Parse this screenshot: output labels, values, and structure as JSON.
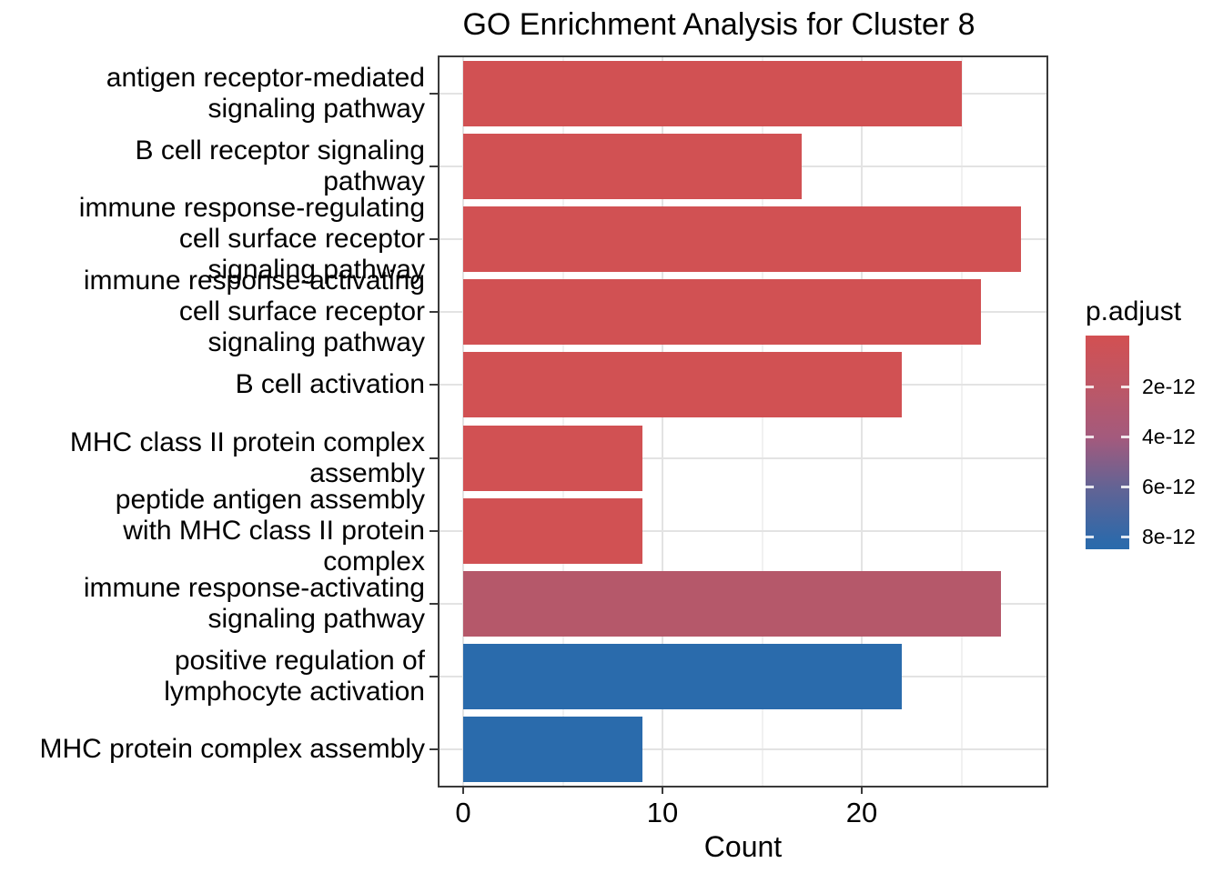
{
  "chart_data": {
    "type": "bar",
    "orientation": "horizontal",
    "title": "GO Enrichment Analysis for Cluster 8",
    "xlabel": "Count",
    "ylabel": "",
    "xlim": [
      0,
      29.3
    ],
    "grid": true,
    "x_ticks": [
      {
        "value": 0,
        "label": "0"
      },
      {
        "value": 10,
        "label": "10"
      },
      {
        "value": 20,
        "label": "20"
      }
    ],
    "x_minor_gridlines": [
      5,
      15,
      25
    ],
    "bars": [
      {
        "label": "antigen receptor-mediated signaling pathway",
        "label_lines": [
          "antigen receptor-mediated",
          "signaling pathway"
        ],
        "count": 25,
        "fill": "#D15153"
      },
      {
        "label": "B cell receptor signaling pathway",
        "label_lines": [
          "B cell receptor signaling",
          "pathway"
        ],
        "count": 17,
        "fill": "#D15153"
      },
      {
        "label": "immune response-regulating cell surface receptor signaling pathway",
        "label_lines": [
          "immune response-regulating",
          "cell surface receptor",
          "signaling pathway"
        ],
        "count": 28,
        "fill": "#D15153"
      },
      {
        "label": "immune response-activating cell surface receptor signaling pathway",
        "label_lines": [
          "immune response-activating",
          "cell surface receptor",
          "signaling pathway"
        ],
        "count": 26,
        "fill": "#D15153"
      },
      {
        "label": "B cell activation",
        "label_lines": [
          "B cell activation"
        ],
        "count": 22,
        "fill": "#D15153"
      },
      {
        "label": "MHC class II protein complex assembly",
        "label_lines": [
          "MHC class II protein complex",
          "assembly"
        ],
        "count": 9,
        "fill": "#D15153"
      },
      {
        "label": "peptide antigen assembly with MHC class II protein complex",
        "label_lines": [
          "peptide antigen assembly",
          "with MHC class II protein",
          "complex"
        ],
        "count": 9,
        "fill": "#D15153"
      },
      {
        "label": "immune response-activating signaling pathway",
        "label_lines": [
          "immune response-activating",
          "signaling pathway"
        ],
        "count": 27,
        "fill": "#B5586A"
      },
      {
        "label": "positive regulation of lymphocyte activation",
        "label_lines": [
          "positive regulation of",
          "lymphocyte activation"
        ],
        "count": 22,
        "fill": "#2A6BAC"
      },
      {
        "label": "MHC protein complex assembly",
        "label_lines": [
          "MHC protein complex assembly"
        ],
        "count": 9,
        "fill": "#2A6BAC"
      }
    ],
    "legend": {
      "title": "p.adjust",
      "tick_labels": [
        "2e-12",
        "4e-12",
        "6e-12",
        "8e-12"
      ],
      "gradient_stops": [
        "#D25052",
        "#BD5766",
        "#A35A7D",
        "#636394",
        "#3069A9",
        "#2A6BAC"
      ],
      "gradient_stop_pos": [
        0,
        24,
        48,
        71,
        95,
        100
      ]
    }
  }
}
